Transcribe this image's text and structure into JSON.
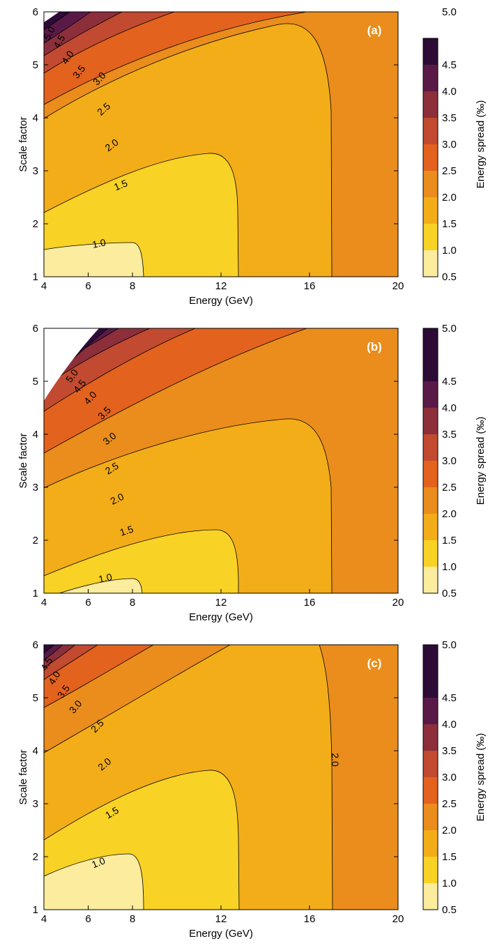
{
  "colorbar": {
    "title": "Energy spread (‰)",
    "ticks": [
      "0.5",
      "1.0",
      "1.5",
      "2.0",
      "2.5",
      "3.0",
      "3.5",
      "4.0",
      "4.5",
      "5.0"
    ],
    "bands": [
      {
        "min": 0.5,
        "max": 1.0,
        "color": "#fcec9e"
      },
      {
        "min": 1.0,
        "max": 1.5,
        "color": "#f8d225"
      },
      {
        "min": 1.5,
        "max": 2.0,
        "color": "#f3ad18"
      },
      {
        "min": 2.0,
        "max": 2.5,
        "color": "#ea8d1c"
      },
      {
        "min": 2.5,
        "max": 3.0,
        "color": "#e3621e"
      },
      {
        "min": 3.0,
        "max": 3.5,
        "color": "#c14a30"
      },
      {
        "min": 3.5,
        "max": 4.0,
        "color": "#8c2f3b"
      },
      {
        "min": 4.0,
        "max": 4.5,
        "color": "#5a1a47"
      },
      {
        "min": 4.5,
        "max": 5.0,
        "color": "#2d0b37"
      }
    ]
  },
  "chart_data": [
    {
      "type": "heatmap",
      "panel_tag": "(a)",
      "xlabel": "Energy (GeV)",
      "ylabel": "Scale factor",
      "xlim": [
        4,
        20
      ],
      "ylim": [
        1,
        6
      ],
      "xticks": [
        "4",
        "6",
        "8",
        "12",
        "16",
        "20"
      ],
      "yticks": [
        "1",
        "2",
        "3",
        "4",
        "5",
        "6"
      ],
      "x_boundaries": {
        "b1": 8.5,
        "b2": 12.8,
        "b3": 17.2
      },
      "contour_labels": [
        "1.0",
        "1.5",
        "2.0",
        "2.5",
        "3.0",
        "3.5",
        "4.0",
        "4.5",
        "5.0"
      ]
    },
    {
      "type": "heatmap",
      "panel_tag": "(b)",
      "xlabel": "Energy (GeV)",
      "ylabel": "Scale factor",
      "xlim": [
        4,
        20
      ],
      "ylim": [
        1,
        6
      ],
      "xticks": [
        "4",
        "6",
        "8",
        "12",
        "16",
        "20"
      ],
      "yticks": [
        "1",
        "2",
        "3",
        "4",
        "5",
        "6"
      ],
      "x_boundaries": {
        "b1": 8.3,
        "b2": 12.8,
        "b3": 17.2
      },
      "contour_labels": [
        "1.0",
        "1.5",
        "2.0",
        "2.5",
        "3.0",
        "3.5",
        "4.0",
        "4.5",
        "5.0"
      ]
    },
    {
      "type": "heatmap",
      "panel_tag": "(c)",
      "xlabel": "Energy (GeV)",
      "ylabel": "Scale factor",
      "xlim": [
        4,
        20
      ],
      "ylim": [
        1,
        6
      ],
      "xticks": [
        "4",
        "6",
        "8",
        "12",
        "16",
        "20"
      ],
      "yticks": [
        "1",
        "2",
        "3",
        "4",
        "5",
        "6"
      ],
      "x_boundaries": {
        "b1": 8.6,
        "b2": 12.8,
        "b3": 17.2
      },
      "contour_labels": [
        "1.0",
        "1.5",
        "2.0",
        "2.5",
        "3.0",
        "3.5",
        "4.0",
        "4.5",
        "2.0"
      ]
    }
  ]
}
